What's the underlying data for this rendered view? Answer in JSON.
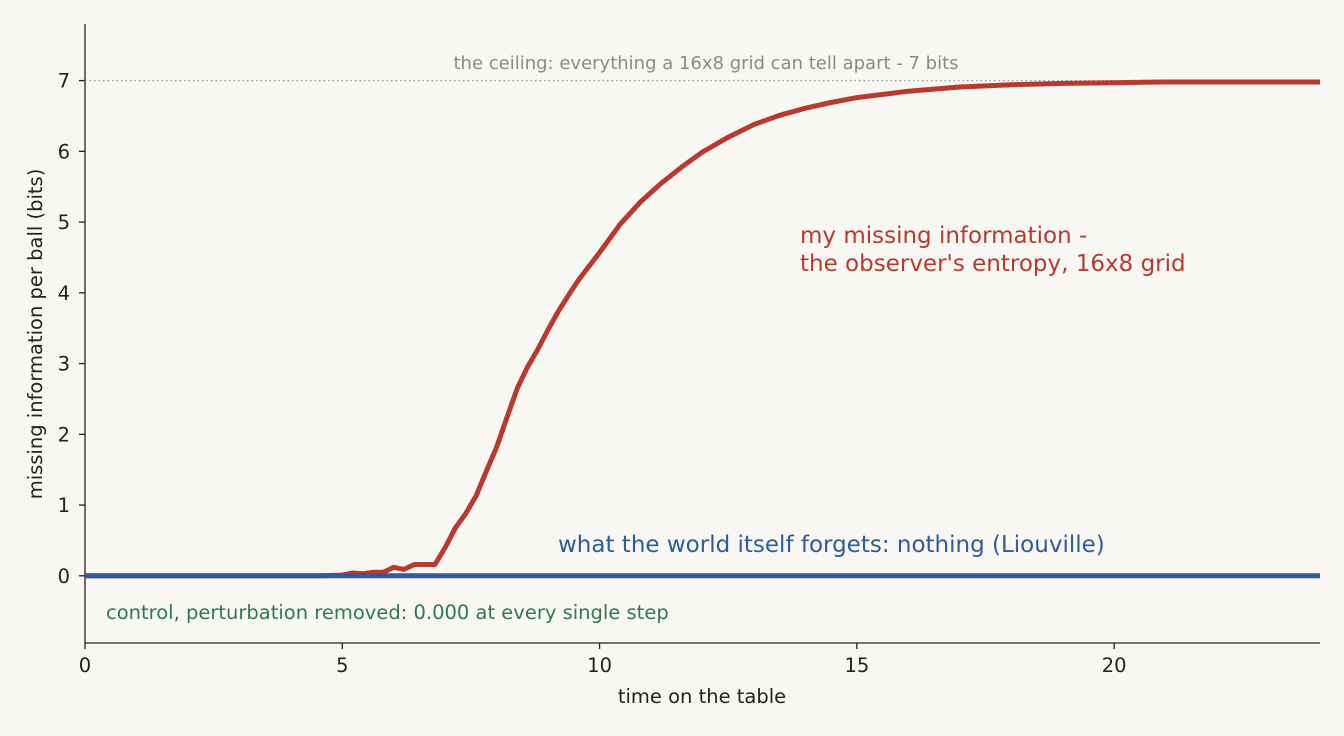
{
  "chart_data": {
    "type": "line",
    "title": "",
    "xlabel": "time on the table",
    "ylabel": "missing information per ball  (bits)",
    "xlim": [
      0,
      24
    ],
    "ylim": [
      -0.95,
      7.8
    ],
    "x_ticks": [
      0,
      5,
      10,
      15,
      20
    ],
    "y_ticks": [
      0,
      1,
      2,
      3,
      4,
      5,
      6,
      7
    ],
    "grid": false,
    "legend": "none",
    "series": [
      {
        "name": "my missing information - the observer's entropy, 16x8 grid",
        "color": "#b83a2f",
        "x": [
          0,
          4.6,
          5.0,
          5.2,
          5.4,
          5.6,
          5.8,
          6.0,
          6.2,
          6.4,
          6.6,
          6.8,
          7.0,
          7.2,
          7.4,
          7.6,
          7.8,
          8.0,
          8.2,
          8.4,
          8.6,
          8.8,
          9.0,
          9.2,
          9.4,
          9.6,
          9.8,
          10.0,
          10.4,
          10.8,
          11.2,
          11.6,
          12.0,
          12.5,
          13.0,
          13.5,
          14.0,
          14.5,
          15.0,
          16.0,
          17.0,
          18.0,
          19.0,
          20.0,
          21.0,
          22.0,
          23.0,
          24.0
        ],
        "values": [
          0,
          0,
          0.01,
          0.04,
          0.03,
          0.05,
          0.05,
          0.12,
          0.09,
          0.16,
          0.16,
          0.16,
          0.4,
          0.68,
          0.88,
          1.13,
          1.48,
          1.82,
          2.24,
          2.65,
          2.95,
          3.2,
          3.48,
          3.74,
          3.97,
          4.19,
          4.38,
          4.57,
          4.97,
          5.29,
          5.55,
          5.78,
          5.99,
          6.2,
          6.38,
          6.51,
          6.61,
          6.69,
          6.76,
          6.85,
          6.91,
          6.94,
          6.96,
          6.97,
          6.98,
          6.98,
          6.98,
          6.98
        ]
      },
      {
        "name": "what the world itself forgets: nothing (Liouville)",
        "color": "#2f5b9e",
        "x": [
          0,
          24
        ],
        "values": [
          0,
          0
        ]
      }
    ],
    "reference_line": {
      "value": 7,
      "color": "#999999",
      "label": "the ceiling: everything a 16x8 grid can tell apart - 7 bits"
    },
    "annotations": {
      "red_line1": "my missing information -",
      "red_line2": "the observer's entropy, 16x8 grid",
      "blue": "what the world itself forgets: nothing (Liouville)",
      "green": "control, perturbation removed: 0.000 at every single step",
      "green_color": "#2e7a4e"
    }
  }
}
